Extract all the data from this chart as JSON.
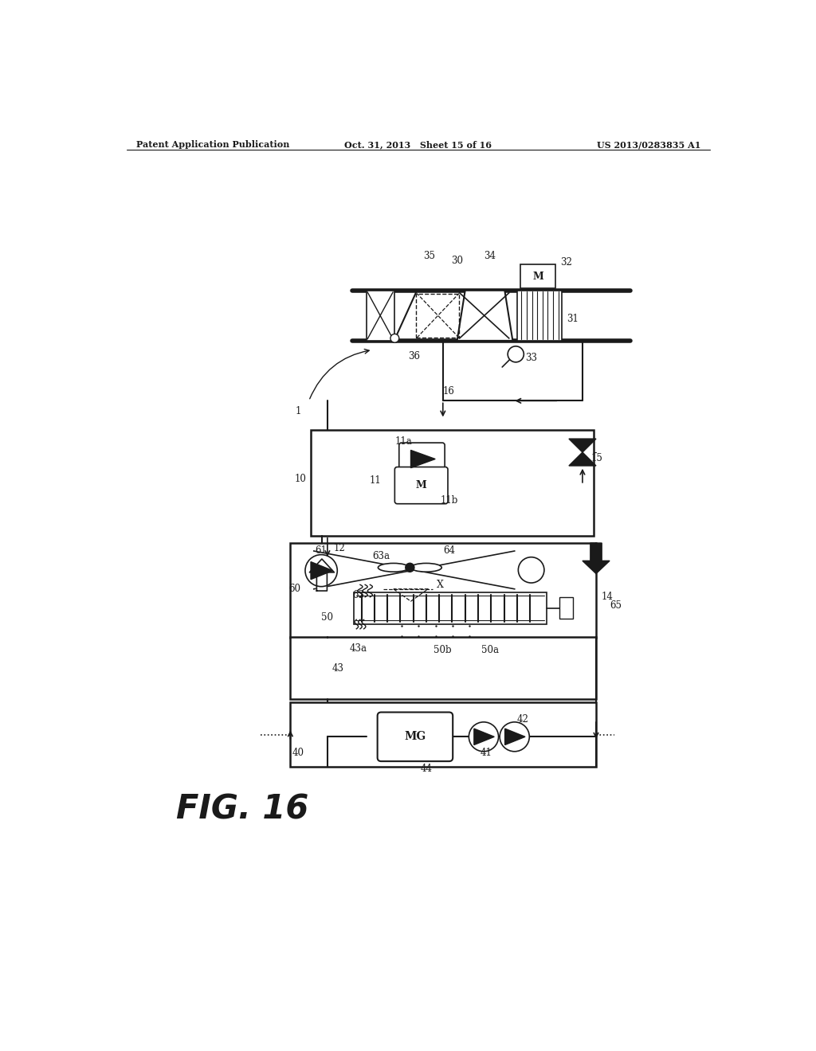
{
  "header_left": "Patent Application Publication",
  "header_center": "Oct. 31, 2013   Sheet 15 of 16",
  "header_right": "US 2013/0283835 A1",
  "figure_label": "FIG. 16",
  "bg": "#ffffff",
  "lc": "#1a1a1a"
}
